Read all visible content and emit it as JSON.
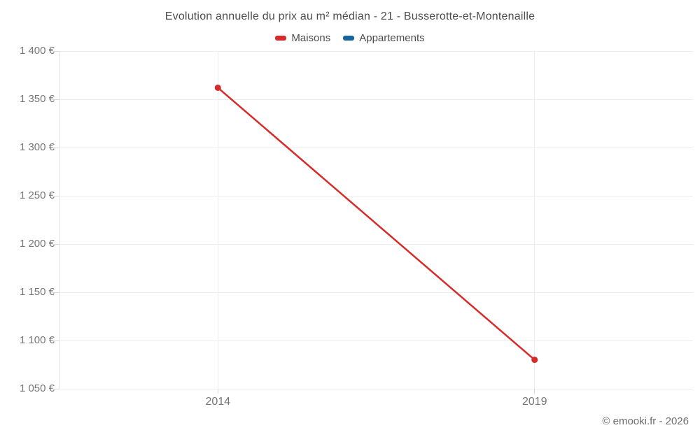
{
  "header": {
    "title": "Evolution annuelle du prix au m² médian - 21 - Busserotte-et-Montenaille"
  },
  "legend": {
    "items": [
      {
        "label": "Maisons",
        "color": "#d62b29"
      },
      {
        "label": "Appartements",
        "color": "#17659e"
      }
    ]
  },
  "footer": {
    "credits": "© emooki.fr - 2026"
  },
  "chart_data": {
    "type": "line",
    "title": "Evolution annuelle du prix au m² médian - 21 - Busserotte-et-Montenaille",
    "x": [
      2014,
      2019
    ],
    "xtick_labels": [
      "2014",
      "2019"
    ],
    "xlim": [
      2011.5,
      2021.5
    ],
    "series": [
      {
        "name": "Maisons",
        "color": "#d62b29",
        "values": [
          1362,
          1080
        ]
      },
      {
        "name": "Appartements",
        "color": "#17659e",
        "values": []
      }
    ],
    "ylim": [
      1050,
      1400
    ],
    "ytick_step": 50,
    "ytick_labels": [
      "1 050 €",
      "1 100 €",
      "1 150 €",
      "1 200 €",
      "1 250 €",
      "1 300 €",
      "1 350 €",
      "1 400 €"
    ],
    "ylabel": "",
    "xlabel": "",
    "grid": true,
    "legend_position": "top",
    "marker_radius": 4.5,
    "line_width": 2.5
  }
}
